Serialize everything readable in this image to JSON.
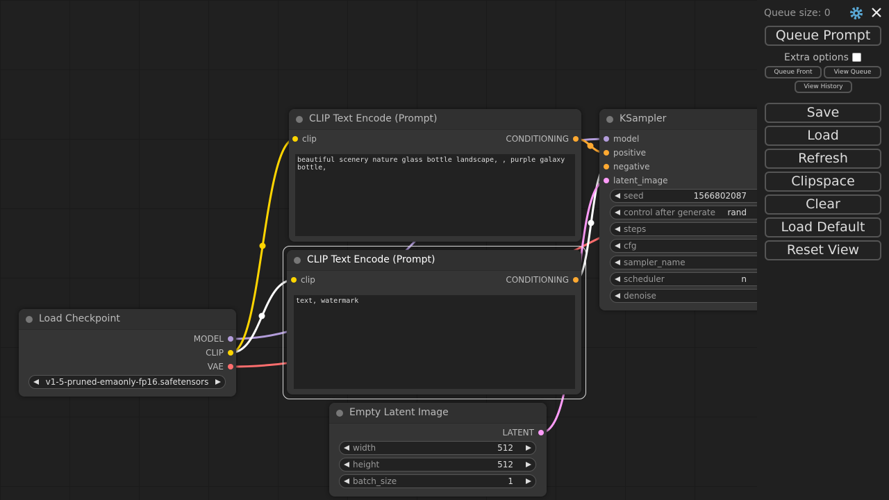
{
  "panel": {
    "queue_size": "Queue size: 0",
    "queue_prompt": "Queue Prompt",
    "extra_options": "Extra options",
    "queue_front": "Queue Front",
    "view_queue": "View Queue",
    "view_history": "View History",
    "buttons": [
      "Save",
      "Load",
      "Refresh",
      "Clipspace",
      "Clear",
      "Load Default",
      "Reset View"
    ]
  },
  "nodes": [
    {
      "title": "CLIP Text Encode (Prompt)",
      "inputs": [
        "clip"
      ],
      "outputs": [
        "CONDITIONING"
      ],
      "text": "beautiful scenery nature glass bottle landscape, , purple galaxy bottle,"
    },
    {
      "title": "CLIP Text Encode (Prompt)",
      "inputs": [
        "clip"
      ],
      "outputs": [
        "CONDITIONING"
      ],
      "text": "text, watermark"
    },
    {
      "title": "Load Checkpoint",
      "outputs": [
        "MODEL",
        "CLIP",
        "VAE"
      ],
      "widgets": [
        {
          "value": "v1-5-pruned-emaonly-fp16.safetensors"
        }
      ]
    },
    {
      "title": "KSampler",
      "inputs": [
        "model",
        "positive",
        "negative",
        "latent_image"
      ],
      "widgets": [
        {
          "label": "seed",
          "value": "1566802087"
        },
        {
          "label": "control after generate",
          "value": "rand"
        },
        {
          "label": "steps"
        },
        {
          "label": "cfg"
        },
        {
          "label": "sampler_name"
        },
        {
          "label": "scheduler",
          "value": "n"
        },
        {
          "label": "denoise"
        }
      ]
    },
    {
      "title": "Empty Latent Image",
      "outputs": [
        "LATENT"
      ],
      "widgets": [
        {
          "label": "width",
          "value": "512"
        },
        {
          "label": "height",
          "value": "512"
        },
        {
          "label": "batch_size",
          "value": "1"
        }
      ]
    }
  ]
}
